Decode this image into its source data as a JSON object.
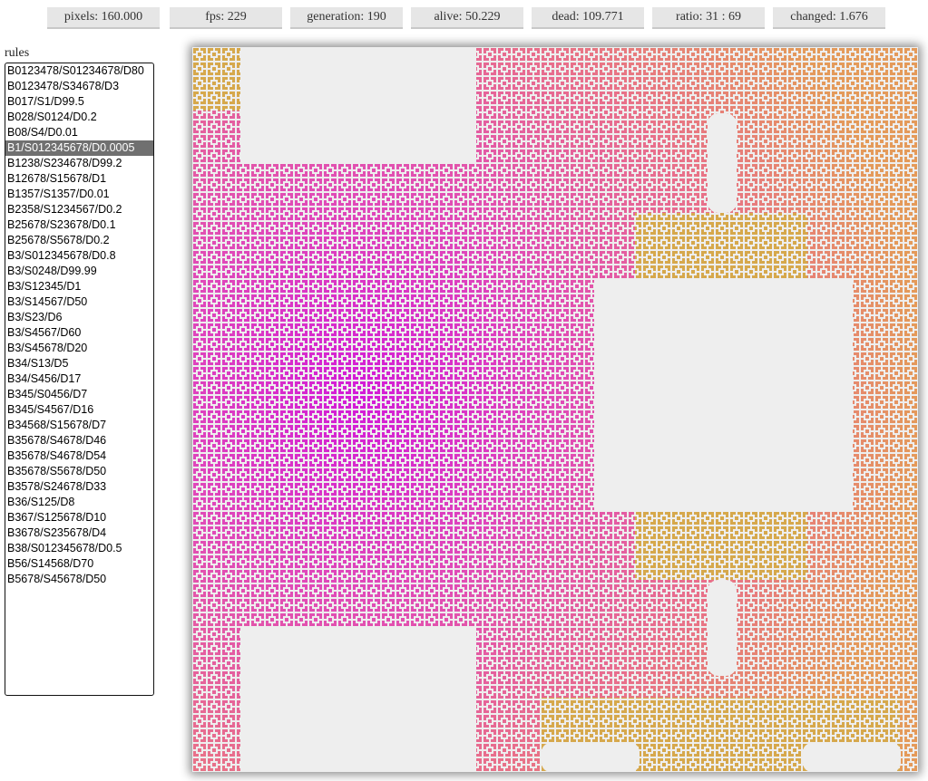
{
  "stats": [
    "pixels: 160.000",
    "fps: 229",
    "generation: 190",
    "alive: 50.229",
    "dead: 109.771",
    "ratio: 31 : 69",
    "changed: 1.676"
  ],
  "rules": {
    "label": "rules",
    "selected": 5,
    "items": [
      "B0123478/S01234678/D80",
      "B0123478/S34678/D3",
      "B017/S1/D99.5",
      "B028/S0124/D0.2",
      "B08/S4/D0.01",
      "B1/S012345678/D0.0005",
      "B1238/S234678/D99.2",
      "B12678/S15678/D1",
      "B1357/S1357/D0.01",
      "B2358/S1234567/D0.2",
      "B25678/S23678/D0.1",
      "B25678/S5678/D0.2",
      "B3/S012345678/D0.8",
      "B3/S0248/D99.99",
      "B3/S12345/D1",
      "B3/S14567/D50",
      "B3/S23/D6",
      "B3/S4567/D60",
      "B3/S45678/D20",
      "B34/S13/D5",
      "B34/S456/D17",
      "B345/S0456/D7",
      "B345/S4567/D16",
      "B34568/S15678/D7",
      "B35678/S4678/D46",
      "B35678/S4678/D54",
      "B35678/S5678/D50",
      "B3578/S24678/D33",
      "B36/S125/D8",
      "B367/S125678/D10",
      "B3678/S235678/D4",
      "B38/S012345678/D0.5",
      "B56/S14568/D70",
      "B5678/S45678/D50"
    ]
  }
}
